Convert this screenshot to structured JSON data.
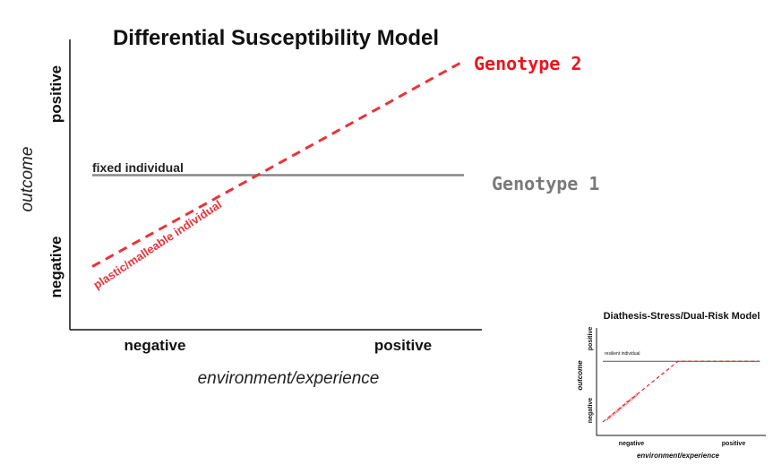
{
  "chart_data": [
    {
      "type": "line",
      "title": "Differential Susceptibility Model",
      "xlabel": "environment/experience",
      "ylabel": "outcome",
      "x_ticks": [
        "negative",
        "positive"
      ],
      "y_ticks": [
        "negative",
        "positive"
      ],
      "series": [
        {
          "name": "fixed individual",
          "tag": "Genotype 1",
          "style": "solid",
          "color": "#888888",
          "x": [
            0,
            1
          ],
          "y": [
            0.5,
            0.5
          ]
        },
        {
          "name": "plastic/malleable individual",
          "tag": "Genotype 2",
          "style": "dashed",
          "color": "#e8333a",
          "x": [
            0,
            1
          ],
          "y": [
            0.1,
            1.0
          ]
        }
      ],
      "grid": false
    },
    {
      "type": "line",
      "title": "Diathesis-Stress/Dual-Risk Model",
      "xlabel": "environment/experience",
      "ylabel": "outcome",
      "x_ticks": [
        "negative",
        "positive"
      ],
      "y_ticks": [
        "negative",
        "positive"
      ],
      "series": [
        {
          "name": "resilient individual",
          "style": "solid",
          "color": "#555555",
          "x": [
            0,
            1
          ],
          "y": [
            0.72,
            0.72
          ]
        },
        {
          "name": "vulnerable individual",
          "style": "dashed",
          "color": "#e0262c",
          "x": [
            0,
            0.48,
            1
          ],
          "y": [
            0.05,
            0.72,
            0.72
          ]
        }
      ],
      "grid": false
    }
  ]
}
